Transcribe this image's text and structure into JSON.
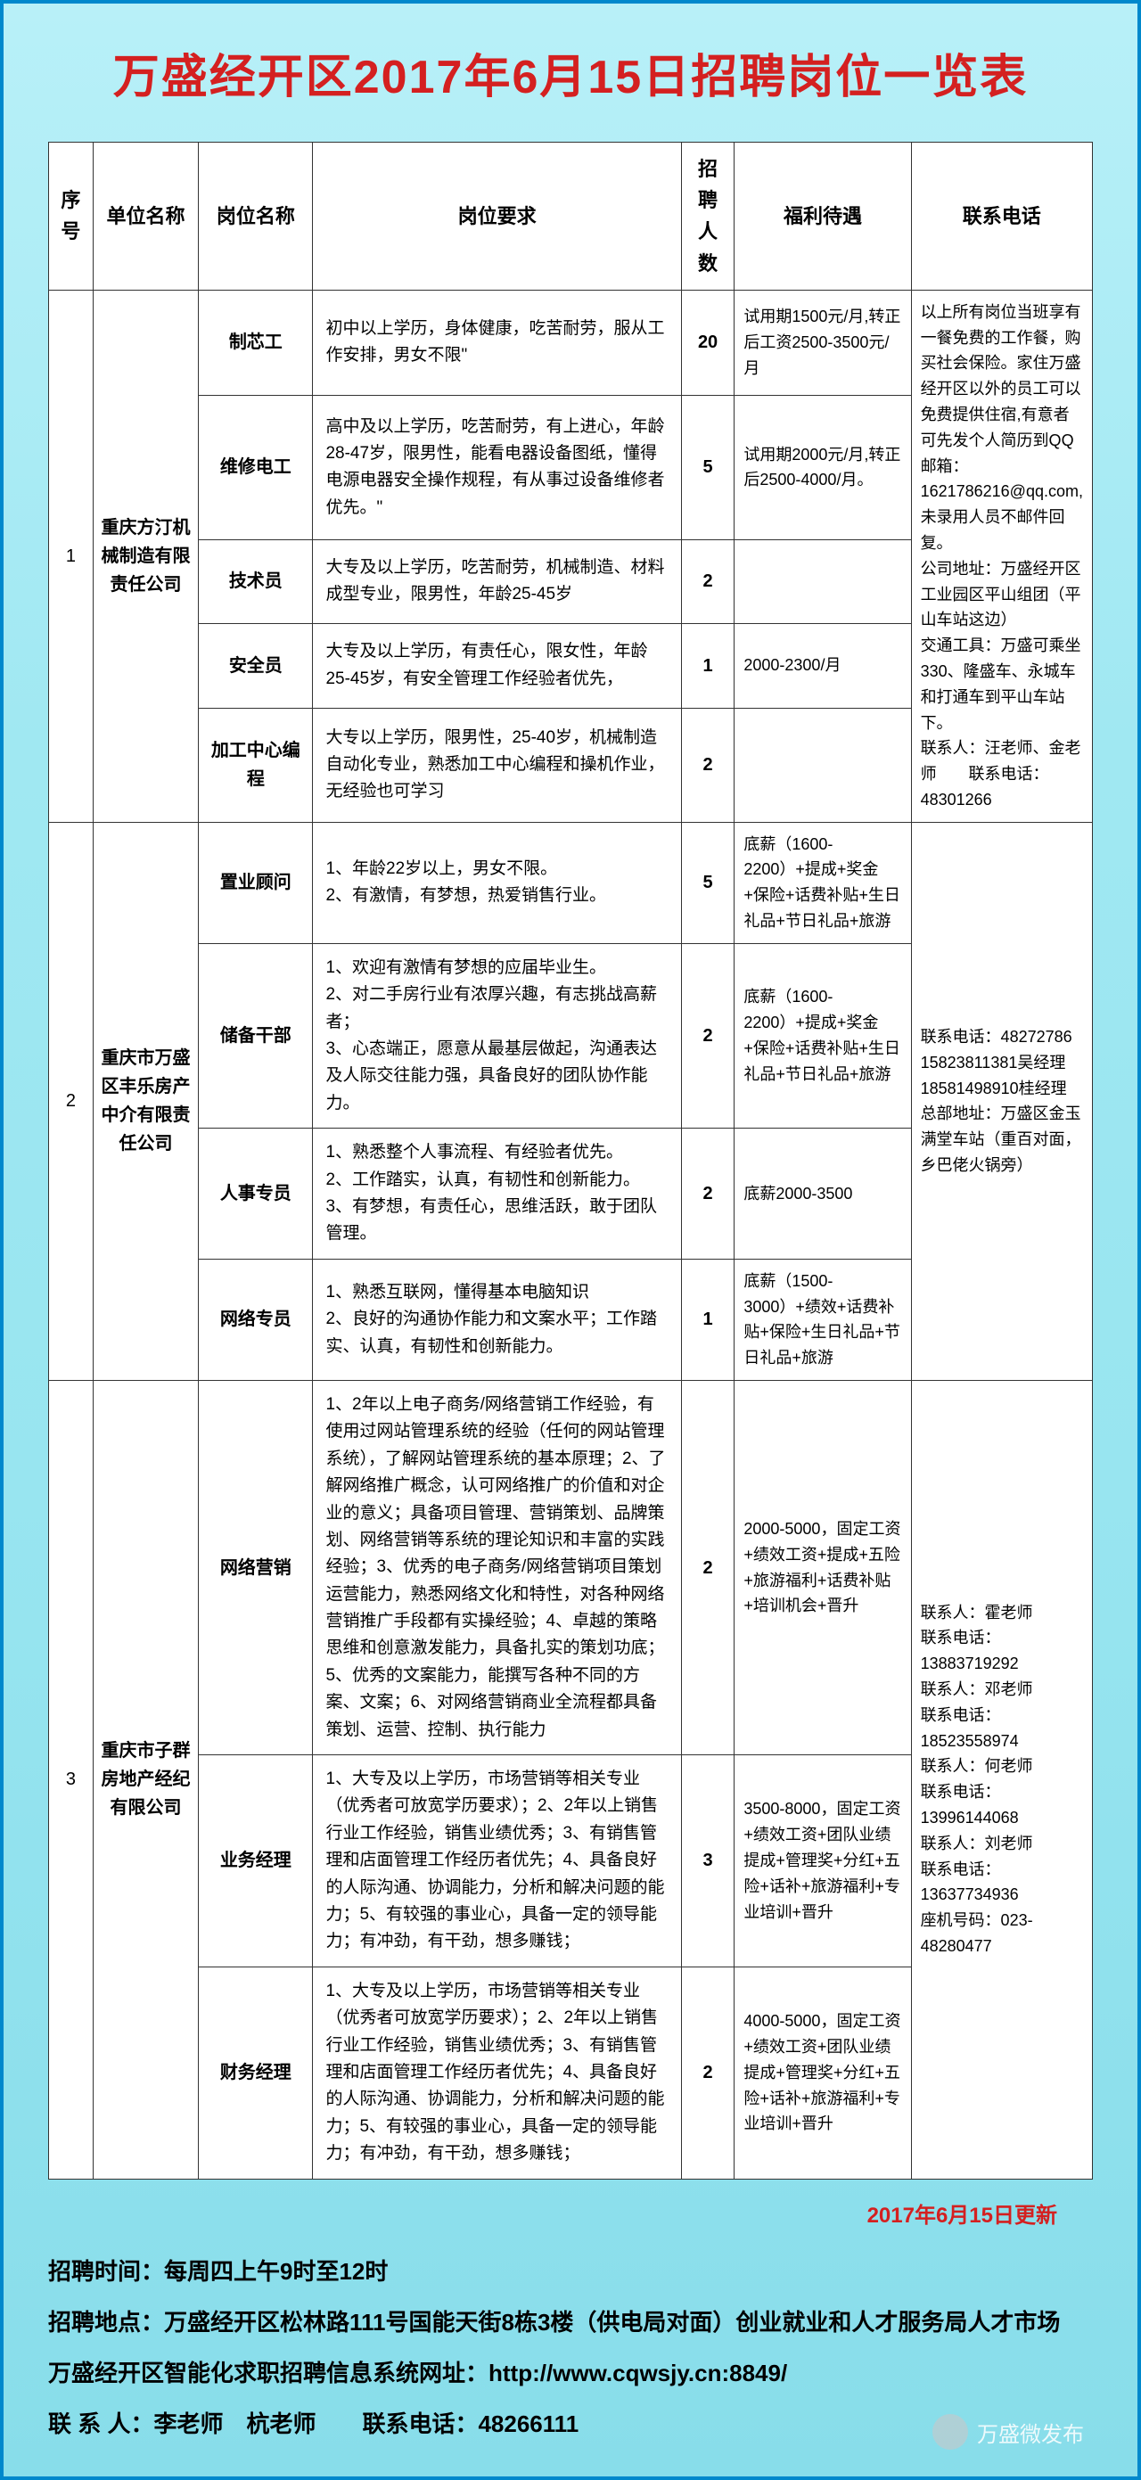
{
  "title": "万盛经开区2017年6月15日招聘岗位一览表",
  "headers": {
    "seq": "序号",
    "company": "单位名称",
    "position": "岗位名称",
    "requirement": "岗位要求",
    "count": "招聘人数",
    "benefit": "福利待遇",
    "contact": "联系电话"
  },
  "companies": [
    {
      "seq": "1",
      "name": "重庆方汀机械制造有限责任公司",
      "contact": "以上所有岗位当班享有一餐免费的工作餐，购买社会保险。家住万盛经开区以外的员工可以免费提供住宿,有意者可先发个人简历到QQ邮箱：1621786216@qq.com,未录用人员不邮件回复。\n公司地址：万盛经开区工业园区平山组团（平山车站这边）\n交通工具：万盛可乘坐330、隆盛车、永城车和打通车到平山车站下。\n联系人：汪老师、金老师　　联系电话：48301266",
      "positions": [
        {
          "name": "制芯工",
          "req": "初中以上学历，身体健康，吃苦耐劳，服从工作安排，男女不限\"",
          "count": "20",
          "benefit": "试用期1500元/月,转正后工资2500-3500元/月"
        },
        {
          "name": "维修电工",
          "req": "高中及以上学历，吃苦耐劳，有上进心，年龄28-47岁，限男性，能看电器设备图纸，懂得电源电器安全操作规程，有从事过设备维修者优先。\"",
          "count": "5",
          "benefit": "试用期2000元/月,转正后2500-4000/月。"
        },
        {
          "name": "技术员",
          "req": "大专及以上学历，吃苦耐劳，机械制造、材料成型专业，限男性，年龄25-45岁",
          "count": "2",
          "benefit": ""
        },
        {
          "name": "安全员",
          "req": "大专及以上学历，有责任心，限女性，年龄25-45岁，有安全管理工作经验者优先，",
          "count": "1",
          "benefit": "2000-2300/月"
        },
        {
          "name": "加工中心编程",
          "req": "大专以上学历，限男性，25-40岁，机械制造自动化专业，熟悉加工中心编程和操机作业，无经验也可学习",
          "count": "2",
          "benefit": ""
        }
      ]
    },
    {
      "seq": "2",
      "name": "重庆市万盛区丰乐房产中介有限责任公司",
      "contact": "联系电话：48272786\n15823811381吴经理\n18581498910桂经理\n总部地址：万盛区金玉满堂车站（重百对面，乡巴佬火锅旁）",
      "positions": [
        {
          "name": "置业顾问",
          "req": "1、年龄22岁以上，男女不限。\n2、有激情，有梦想，热爱销售行业。",
          "count": "5",
          "benefit": "底薪（1600-2200）+提成+奖金+保险+话费补贴+生日礼品+节日礼品+旅游"
        },
        {
          "name": "储备干部",
          "req": "1、欢迎有激情有梦想的应届毕业生。\n2、对二手房行业有浓厚兴趣，有志挑战高薪者；\n3、心态端正，愿意从最基层做起，沟通表达及人际交往能力强，具备良好的团队协作能力。",
          "count": "2",
          "benefit": "底薪（1600-2200）+提成+奖金+保险+话费补贴+生日礼品+节日礼品+旅游"
        },
        {
          "name": "人事专员",
          "req": "1、熟悉整个人事流程、有经验者优先。\n2、工作踏实，认真，有韧性和创新能力。\n3、有梦想，有责任心，思维活跃，敢于团队管理。",
          "count": "2",
          "benefit": "底薪2000-3500"
        },
        {
          "name": "网络专员",
          "req": "1、熟悉互联网，懂得基本电脑知识\n2、良好的沟通协作能力和文案水平；工作踏实、认真，有韧性和创新能力。",
          "count": "1",
          "benefit": "底薪（1500-3000）+绩效+话费补贴+保险+生日礼品+节日礼品+旅游"
        }
      ]
    },
    {
      "seq": "3",
      "name": "重庆市子群房地产经纪有限公司",
      "contact": "联系人：霍老师\n联系电话：13883719292\n联系人：邓老师\n联系电话：18523558974\n联系人：何老师\n联系电话：13996144068\n联系人：刘老师\n联系电话：13637734936\n座机号码：023-48280477",
      "positions": [
        {
          "name": "网络营销",
          "req": "1、2年以上电子商务/网络营销工作经验，有使用过网站管理系统的经验（任何的网站管理系统），了解网站管理系统的基本原理；2、了解网络推广概念，认可网络推广的价值和对企业的意义；具备项目管理、营销策划、品牌策划、网络营销等系统的理论知识和丰富的实践经验；3、优秀的电子商务/网络营销项目策划运营能力，熟悉网络文化和特性，对各种网络营销推广手段都有实操经验；4、卓越的策略思维和创意激发能力，具备扎实的策划功底；5、优秀的文案能力，能撰写各种不同的方案、文案；6、对网络营销商业全流程都具备策划、运营、控制、执行能力",
          "count": "2",
          "benefit": "2000-5000，固定工资+绩效工资+提成+五险+旅游福利+话费补贴+培训机会+晋升"
        },
        {
          "name": "业务经理",
          "req": "1、大专及以上学历，市场营销等相关专业（优秀者可放宽学历要求）；2、2年以上销售行业工作经验，销售业绩优秀；3、有销售管理和店面管理工作经历者优先；4、具备良好的人际沟通、协调能力，分析和解决问题的能力；5、有较强的事业心，具备一定的领导能力；有冲劲，有干劲，想多赚钱；",
          "count": "3",
          "benefit": "3500-8000，固定工资+绩效工资+团队业绩提成+管理奖+分红+五险+话补+旅游福利+专业培训+晋升"
        },
        {
          "name": "财务经理",
          "req": "1、大专及以上学历，市场营销等相关专业（优秀者可放宽学历要求）；2、2年以上销售行业工作经验，销售业绩优秀；3、有销售管理和店面管理工作经历者优先；4、具备良好的人际沟通、协调能力，分析和解决问题的能力；5、有较强的事业心，具备一定的领导能力；有冲劲，有干劲，想多赚钱；",
          "count": "2",
          "benefit": "4000-5000，固定工资+绩效工资+团队业绩提成+管理奖+分红+五险+话补+旅游福利+专业培训+晋升"
        }
      ]
    }
  ],
  "update_note": "2017年6月15日更新",
  "footer": {
    "time": "招聘时间：每周四上午9时至12时",
    "place": "招聘地点：万盛经开区松林路111号国能天街8栋3楼（供电局对面）创业就业和人才服务局人才市场",
    "url": "万盛经开区智能化求职招聘信息系统网址：http://www.cqwsjy.cn:8849/",
    "contact": "联 系 人：李老师　杭老师　　联系电话：48266111"
  },
  "watermark": "万盛微发布"
}
